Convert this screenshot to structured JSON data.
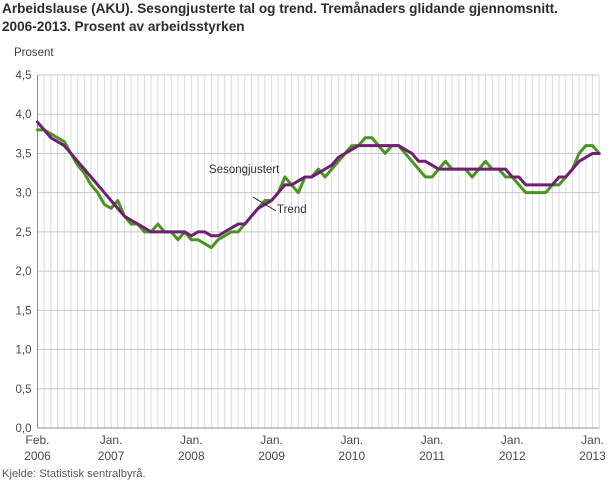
{
  "page": {
    "title": "Arbeidslause (AKU). Sesongjusterte tal og trend. Tremånaders glidande gjennomsnitt. 2006-2013. Prosent av arbeidsstyrken",
    "y_axis_unit_label": "Prosent",
    "source": "Kjelde: Statistisk sentralbyrå."
  },
  "chart_data": {
    "type": "line",
    "title": "Arbeidslause (AKU). Sesongjusterte tal og trend. Tremånaders glidande gjennomsnitt. 2006-2013. Prosent av arbeidsstyrken",
    "ylabel": "Prosent",
    "ylim": [
      0,
      4.5
    ],
    "grid": "both",
    "legend_position": "inline-annotations",
    "x_unit": "month",
    "x_start": "Feb. 2006",
    "x_end": "Feb. 2013",
    "axes": {
      "y": {
        "min": 0,
        "max": 4.5,
        "step": 0.5,
        "labels": [
          "0,0",
          "0,5",
          "1,0",
          "1,5",
          "2,0",
          "2,5",
          "3,0",
          "3,5",
          "4,0",
          "4,5"
        ]
      },
      "x": {
        "tick_month_indices": [
          0,
          11,
          23,
          35,
          47,
          59,
          71,
          83
        ],
        "tick_labels": [
          [
            "Feb.",
            "2006"
          ],
          [
            "Jan.",
            "2007"
          ],
          [
            "Jan.",
            "2008"
          ],
          [
            "Jan.",
            "2009"
          ],
          [
            "Jan.",
            "2010"
          ],
          [
            "Jan.",
            "2011"
          ],
          [
            "Jan.",
            "2012"
          ],
          [
            "Jan.",
            "2013"
          ]
        ]
      }
    },
    "annotations": [
      {
        "text": "Sesongjustert",
        "series": "Sesongjustert"
      },
      {
        "text": "Trend",
        "series": "Trend"
      }
    ],
    "colors": {
      "sesongjustert": "#4a9420",
      "trend": "#711f72",
      "grid_vertical": "#dcdcdc",
      "grid_horizontal": "#c8c8c8",
      "axis": "#8c8c8c",
      "tick_text": "#4a4a4a"
    },
    "series": [
      {
        "name": "Sesongjustert",
        "color": "#4a9420",
        "values": [
          3.8,
          3.8,
          3.75,
          3.7,
          3.65,
          3.5,
          3.35,
          3.25,
          3.1,
          3.0,
          2.85,
          2.8,
          2.9,
          2.7,
          2.6,
          2.6,
          2.5,
          2.5,
          2.6,
          2.5,
          2.5,
          2.4,
          2.5,
          2.4,
          2.4,
          2.35,
          2.3,
          2.4,
          2.45,
          2.5,
          2.5,
          2.6,
          2.7,
          2.8,
          2.9,
          2.9,
          3.0,
          3.2,
          3.1,
          3.0,
          3.2,
          3.2,
          3.3,
          3.2,
          3.3,
          3.4,
          3.5,
          3.6,
          3.6,
          3.7,
          3.7,
          3.6,
          3.5,
          3.6,
          3.6,
          3.5,
          3.4,
          3.3,
          3.2,
          3.2,
          3.3,
          3.4,
          3.3,
          3.3,
          3.3,
          3.2,
          3.3,
          3.4,
          3.3,
          3.3,
          3.2,
          3.2,
          3.1,
          3.0,
          3.0,
          3.0,
          3.0,
          3.1,
          3.1,
          3.2,
          3.3,
          3.5,
          3.6,
          3.6,
          3.5
        ]
      },
      {
        "name": "Trend",
        "color": "#711f72",
        "values": [
          3.9,
          3.8,
          3.7,
          3.65,
          3.6,
          3.5,
          3.4,
          3.3,
          3.2,
          3.1,
          3.0,
          2.9,
          2.8,
          2.7,
          2.65,
          2.6,
          2.55,
          2.5,
          2.5,
          2.5,
          2.5,
          2.5,
          2.5,
          2.45,
          2.5,
          2.5,
          2.45,
          2.45,
          2.5,
          2.55,
          2.6,
          2.6,
          2.7,
          2.8,
          2.85,
          2.9,
          3.0,
          3.1,
          3.1,
          3.15,
          3.2,
          3.2,
          3.25,
          3.3,
          3.35,
          3.45,
          3.5,
          3.55,
          3.6,
          3.6,
          3.6,
          3.6,
          3.6,
          3.6,
          3.6,
          3.55,
          3.5,
          3.4,
          3.4,
          3.35,
          3.3,
          3.3,
          3.3,
          3.3,
          3.3,
          3.3,
          3.3,
          3.3,
          3.3,
          3.3,
          3.3,
          3.2,
          3.2,
          3.1,
          3.1,
          3.1,
          3.1,
          3.1,
          3.2,
          3.2,
          3.3,
          3.4,
          3.45,
          3.5,
          3.5
        ]
      }
    ]
  }
}
